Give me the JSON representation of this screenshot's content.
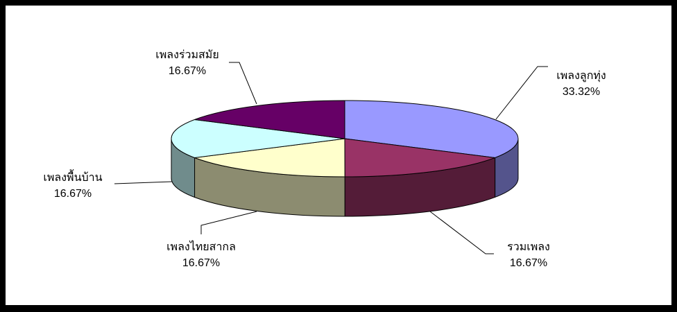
{
  "chart_data": {
    "type": "pie3d",
    "categories": [
      "เพลงลูกทุ่ง",
      "รวมเพลง",
      "เพลงไทยสากล",
      "เพลงพื้นบ้าน",
      "เพลงร่วมสมัย"
    ],
    "values": [
      33.32,
      16.67,
      16.67,
      16.67,
      16.67
    ],
    "value_labels": [
      "33.32%",
      "16.67%",
      "16.67%",
      "16.67%",
      "16.67%"
    ],
    "colors": [
      "#9999ff",
      "#993366",
      "#ffffcc",
      "#ccffff",
      "#660066"
    ]
  }
}
